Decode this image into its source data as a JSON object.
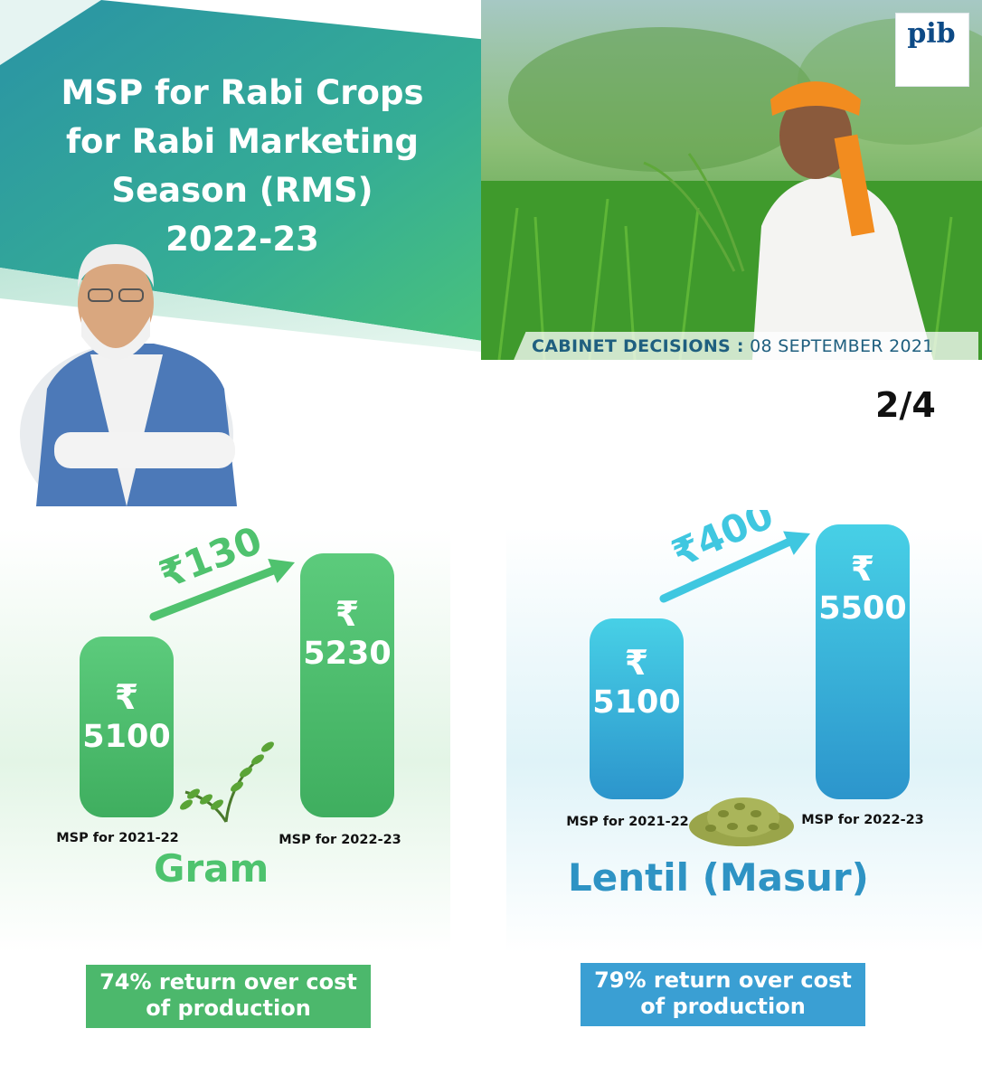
{
  "header": {
    "title_lines": [
      "MSP for Rabi Crops",
      "for Rabi Marketing",
      "Season (RMS)",
      "2022-23"
    ],
    "cabinet_label": "CABINET DECISIONS :",
    "cabinet_date": "08 SEPTEMBER 2021",
    "page_indicator": "2/4",
    "logo_text": "pib"
  },
  "colors": {
    "teal": "#2e9fa0",
    "green": "#47c07a",
    "gram_bar": "#55c476",
    "lentil_bar": "#39aedc"
  },
  "chart_data": [
    {
      "type": "bar",
      "crop": "Gram",
      "categories": [
        "MSP for 2021-22",
        "MSP for 2022-23"
      ],
      "values": [
        5100,
        5230
      ],
      "value_labels": [
        "5100",
        "5230"
      ],
      "currency_symbol": "₹",
      "increase_label": "₹130",
      "return_text_lines": [
        "74% return over cost",
        "of production"
      ]
    },
    {
      "type": "bar",
      "crop": "Lentil (Masur)",
      "categories": [
        "MSP for 2021-22",
        "MSP for 2022-23"
      ],
      "values": [
        5100,
        5500
      ],
      "value_labels": [
        "5100",
        "5500"
      ],
      "currency_symbol": "₹",
      "increase_label": "₹400",
      "return_text_lines": [
        "79% return over cost",
        "of production"
      ]
    }
  ]
}
